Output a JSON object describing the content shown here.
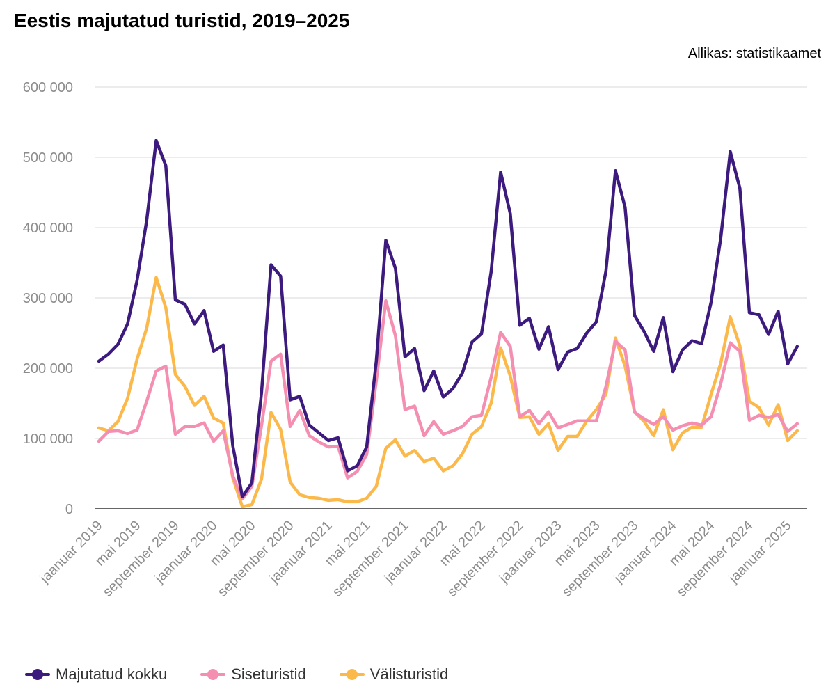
{
  "title": "Eestis majutatud turistid, 2019–2025",
  "source": "Allikas: statistikaamet",
  "chart_data": {
    "type": "line",
    "y_ticks": [
      0,
      100000,
      200000,
      300000,
      400000,
      500000,
      600000
    ],
    "y_tick_labels": [
      "0",
      "100 000",
      "200 000",
      "300 000",
      "400 000",
      "500 000",
      "600 000"
    ],
    "ylim": [
      0,
      600000
    ],
    "x_tick_labels": [
      "jaanuar 2019",
      "mai 2019",
      "september 2019",
      "jaanuar 2020",
      "mai 2020",
      "september 2020",
      "jaanuar 2021",
      "mai 2021",
      "september 2021",
      "jaanuar 2022",
      "mai 2022",
      "september 2022",
      "jaanuar 2023",
      "mai 2023",
      "september 2023",
      "jaanuar 2024",
      "mai 2024",
      "september 2024",
      "jaanuar 2025"
    ],
    "x_start": "jaanuar 2019",
    "x_end": "veebruar 2025",
    "grid": true,
    "legend_position": "bottom-left",
    "series": [
      {
        "name": "Majutatud kokku",
        "color": "#3c1a7e",
        "values": [
          210000,
          220000,
          234000,
          263000,
          325000,
          410000,
          524000,
          488000,
          297000,
          291000,
          263000,
          282000,
          224000,
          233000,
          90000,
          17000,
          37000,
          165000,
          347000,
          331000,
          155000,
          160000,
          119000,
          108000,
          97000,
          101000,
          54000,
          61000,
          88000,
          210000,
          382000,
          342000,
          216000,
          228000,
          168000,
          196000,
          159000,
          171000,
          193000,
          237000,
          249000,
          337000,
          479000,
          420000,
          261000,
          271000,
          227000,
          259000,
          198000,
          223000,
          228000,
          250000,
          266000,
          338000,
          481000,
          429000,
          275000,
          252000,
          224000,
          272000,
          195000,
          226000,
          239000,
          235000,
          294000,
          385000,
          508000,
          456000,
          279000,
          276000,
          248000,
          281000,
          206000,
          231000
        ]
      },
      {
        "name": "Siseturistid",
        "color": "#f48fb1",
        "values": [
          96000,
          110000,
          111000,
          107000,
          112000,
          153000,
          196000,
          203000,
          106000,
          117000,
          117000,
          122000,
          96000,
          111000,
          47000,
          14000,
          32000,
          118000,
          210000,
          220000,
          117000,
          140000,
          104000,
          95000,
          88000,
          89000,
          44000,
          53000,
          77000,
          182000,
          296000,
          246000,
          141000,
          146000,
          104000,
          124000,
          106000,
          111000,
          117000,
          131000,
          133000,
          187000,
          251000,
          231000,
          131000,
          140000,
          121000,
          138000,
          115000,
          120000,
          125000,
          125000,
          125000,
          174000,
          238000,
          226000,
          137000,
          128000,
          120000,
          131000,
          112000,
          118000,
          122000,
          119000,
          131000,
          178000,
          236000,
          224000,
          126000,
          133000,
          130000,
          134000,
          110000,
          121000
        ]
      },
      {
        "name": "Välisturistid",
        "color": "#fcb94b",
        "values": [
          115000,
          111000,
          124000,
          157000,
          213000,
          257000,
          329000,
          286000,
          191000,
          174000,
          147000,
          160000,
          129000,
          122000,
          44000,
          3000,
          6000,
          42000,
          137000,
          113000,
          38000,
          20000,
          16000,
          15000,
          12000,
          13000,
          10000,
          10000,
          15000,
          32000,
          86000,
          98000,
          75000,
          83000,
          67000,
          72000,
          54000,
          61000,
          78000,
          106000,
          117000,
          150000,
          229000,
          189000,
          130000,
          131000,
          106000,
          121000,
          83000,
          103000,
          103000,
          125000,
          141000,
          163000,
          243000,
          203000,
          138000,
          124000,
          104000,
          141000,
          84000,
          108000,
          116000,
          116000,
          163000,
          207000,
          273000,
          232000,
          153000,
          144000,
          119000,
          148000,
          97000,
          111000
        ]
      }
    ]
  }
}
